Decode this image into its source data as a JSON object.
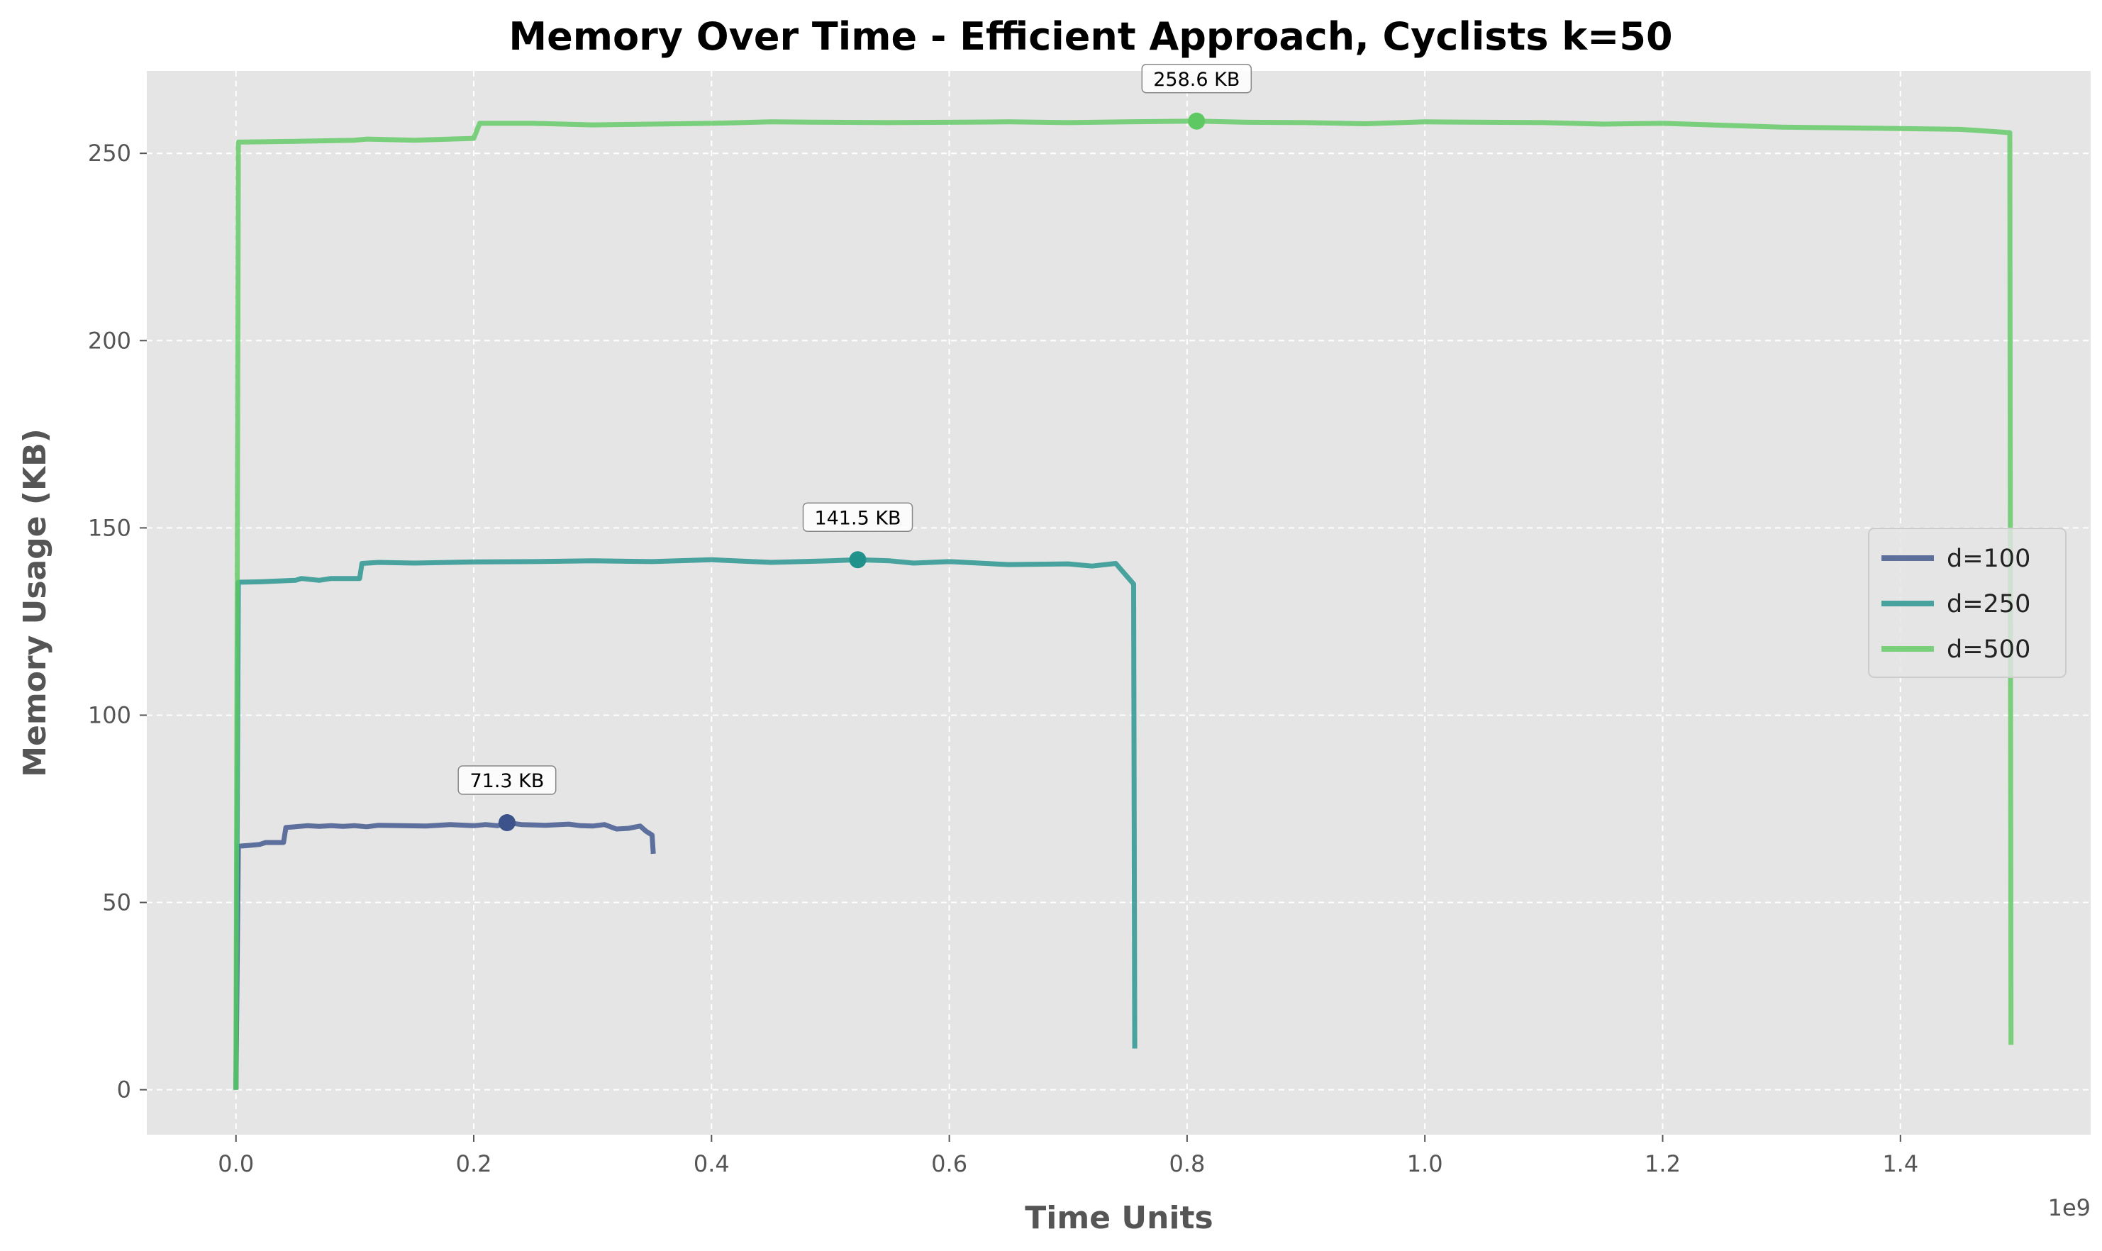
{
  "chart_data": {
    "type": "line",
    "title": "Memory Over Time - Efficient Approach, Cyclists k=50",
    "xlabel": "Time Units",
    "ylabel": "Memory Usage (KB)",
    "x_offset_label": "1e9",
    "xlim": [
      -0.075,
      1.56
    ],
    "ylim": [
      -12,
      272
    ],
    "x_ticks": [
      0.0,
      0.2,
      0.4,
      0.6,
      0.8,
      1.0,
      1.2,
      1.4
    ],
    "x_tick_labels": [
      "0.0",
      "0.2",
      "0.4",
      "0.6",
      "0.8",
      "1.0",
      "1.2",
      "1.4"
    ],
    "y_ticks": [
      0,
      50,
      100,
      150,
      200,
      250
    ],
    "y_tick_labels": [
      "0",
      "50",
      "100",
      "150",
      "200",
      "250"
    ],
    "grid": true,
    "legend_position": "center-right",
    "series": [
      {
        "name": "d=100",
        "color": "#3b528b",
        "peak": {
          "x": 0.228,
          "y": 71.3,
          "label": "71.3 KB"
        },
        "points": [
          [
            0.0,
            0
          ],
          [
            0.002,
            65
          ],
          [
            0.01,
            65.2
          ],
          [
            0.02,
            65.5
          ],
          [
            0.025,
            66
          ],
          [
            0.04,
            66
          ],
          [
            0.042,
            70
          ],
          [
            0.05,
            70.2
          ],
          [
            0.06,
            70.5
          ],
          [
            0.07,
            70.3
          ],
          [
            0.08,
            70.5
          ],
          [
            0.09,
            70.3
          ],
          [
            0.1,
            70.5
          ],
          [
            0.11,
            70.2
          ],
          [
            0.12,
            70.6
          ],
          [
            0.14,
            70.5
          ],
          [
            0.16,
            70.4
          ],
          [
            0.18,
            70.8
          ],
          [
            0.2,
            70.5
          ],
          [
            0.21,
            70.8
          ],
          [
            0.22,
            70.5
          ],
          [
            0.228,
            71.3
          ],
          [
            0.24,
            70.8
          ],
          [
            0.26,
            70.6
          ],
          [
            0.28,
            70.9
          ],
          [
            0.29,
            70.5
          ],
          [
            0.3,
            70.4
          ],
          [
            0.31,
            70.8
          ],
          [
            0.32,
            69.6
          ],
          [
            0.33,
            69.8
          ],
          [
            0.34,
            70.4
          ],
          [
            0.345,
            69
          ],
          [
            0.35,
            68
          ],
          [
            0.351,
            63
          ]
        ]
      },
      {
        "name": "d=250",
        "color": "#21918c",
        "peak": {
          "x": 0.523,
          "y": 141.5,
          "label": "141.5 KB"
        },
        "points": [
          [
            0.0,
            0
          ],
          [
            0.002,
            135.5
          ],
          [
            0.02,
            135.6
          ],
          [
            0.05,
            136
          ],
          [
            0.055,
            136.5
          ],
          [
            0.07,
            136
          ],
          [
            0.08,
            136.5
          ],
          [
            0.104,
            136.5
          ],
          [
            0.106,
            140.5
          ],
          [
            0.12,
            140.8
          ],
          [
            0.15,
            140.6
          ],
          [
            0.18,
            140.8
          ],
          [
            0.2,
            140.9
          ],
          [
            0.25,
            141
          ],
          [
            0.3,
            141.2
          ],
          [
            0.35,
            141
          ],
          [
            0.4,
            141.5
          ],
          [
            0.45,
            140.8
          ],
          [
            0.5,
            141.2
          ],
          [
            0.523,
            141.5
          ],
          [
            0.55,
            141.2
          ],
          [
            0.57,
            140.6
          ],
          [
            0.6,
            141
          ],
          [
            0.65,
            140.2
          ],
          [
            0.7,
            140.4
          ],
          [
            0.72,
            139.8
          ],
          [
            0.74,
            140.5
          ],
          [
            0.755,
            135
          ],
          [
            0.756,
            11
          ]
        ]
      },
      {
        "name": "d=500",
        "color": "#5ec962",
        "peak": {
          "x": 0.808,
          "y": 258.6,
          "label": "258.6 KB"
        },
        "points": [
          [
            0.0,
            0
          ],
          [
            0.002,
            253
          ],
          [
            0.05,
            253.2
          ],
          [
            0.1,
            253.5
          ],
          [
            0.11,
            253.8
          ],
          [
            0.15,
            253.5
          ],
          [
            0.2,
            254
          ],
          [
            0.205,
            258
          ],
          [
            0.25,
            258
          ],
          [
            0.3,
            257.6
          ],
          [
            0.35,
            257.8
          ],
          [
            0.4,
            258
          ],
          [
            0.45,
            258.4
          ],
          [
            0.5,
            258.3
          ],
          [
            0.55,
            258.2
          ],
          [
            0.6,
            258.3
          ],
          [
            0.65,
            258.4
          ],
          [
            0.7,
            258.2
          ],
          [
            0.75,
            258.4
          ],
          [
            0.808,
            258.6
          ],
          [
            0.85,
            258.3
          ],
          [
            0.9,
            258.2
          ],
          [
            0.95,
            257.9
          ],
          [
            1.0,
            258.4
          ],
          [
            1.05,
            258.3
          ],
          [
            1.1,
            258.2
          ],
          [
            1.15,
            257.8
          ],
          [
            1.2,
            258
          ],
          [
            1.25,
            257.5
          ],
          [
            1.3,
            257
          ],
          [
            1.35,
            256.8
          ],
          [
            1.4,
            256.6
          ],
          [
            1.45,
            256.4
          ],
          [
            1.48,
            255.8
          ],
          [
            1.492,
            255.5
          ],
          [
            1.493,
            12
          ]
        ]
      }
    ]
  }
}
